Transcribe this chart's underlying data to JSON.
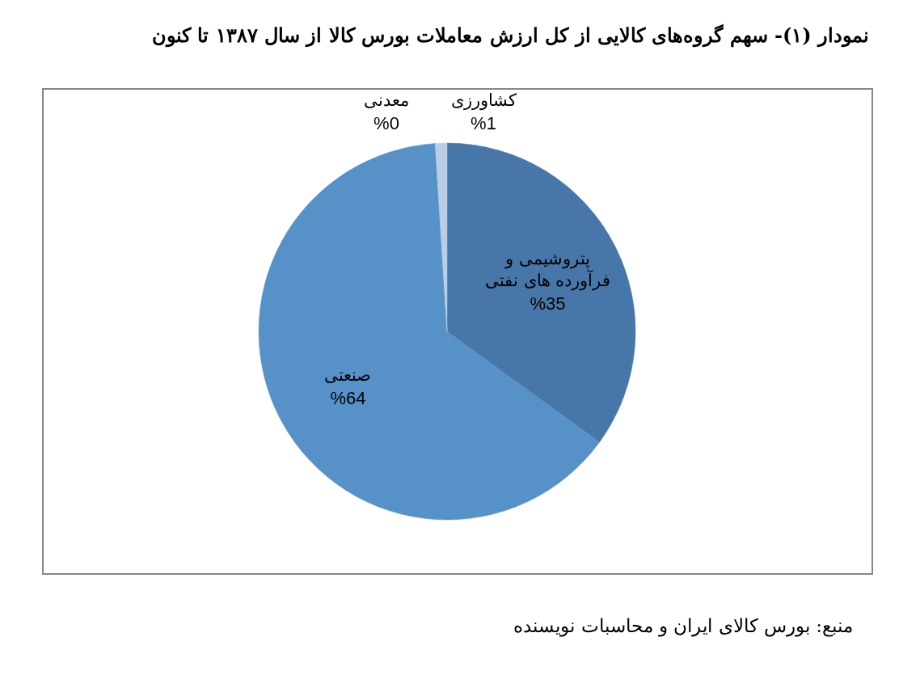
{
  "chart_data": {
    "type": "pie",
    "title": "نمودار (۱)- سهم گروه‌های کالایی از کل ارزش معاملات بورس کالا از سال ۱۳۸۷ تا کنون",
    "categories": [
      "پتروشیمی و فرآورده های نفتی",
      "صنعتی",
      "معدنی",
      "کشاورزی"
    ],
    "values": [
      35,
      64,
      0,
      1
    ],
    "value_labels": [
      "%35",
      "%64",
      "%0",
      "%1"
    ],
    "colors": [
      "#4677a8",
      "#5691c8",
      "#95b3d7",
      "#b9cde5"
    ],
    "annotations": [
      "منبع: بورس کالای ایران و محاسبات نویسنده"
    ]
  }
}
